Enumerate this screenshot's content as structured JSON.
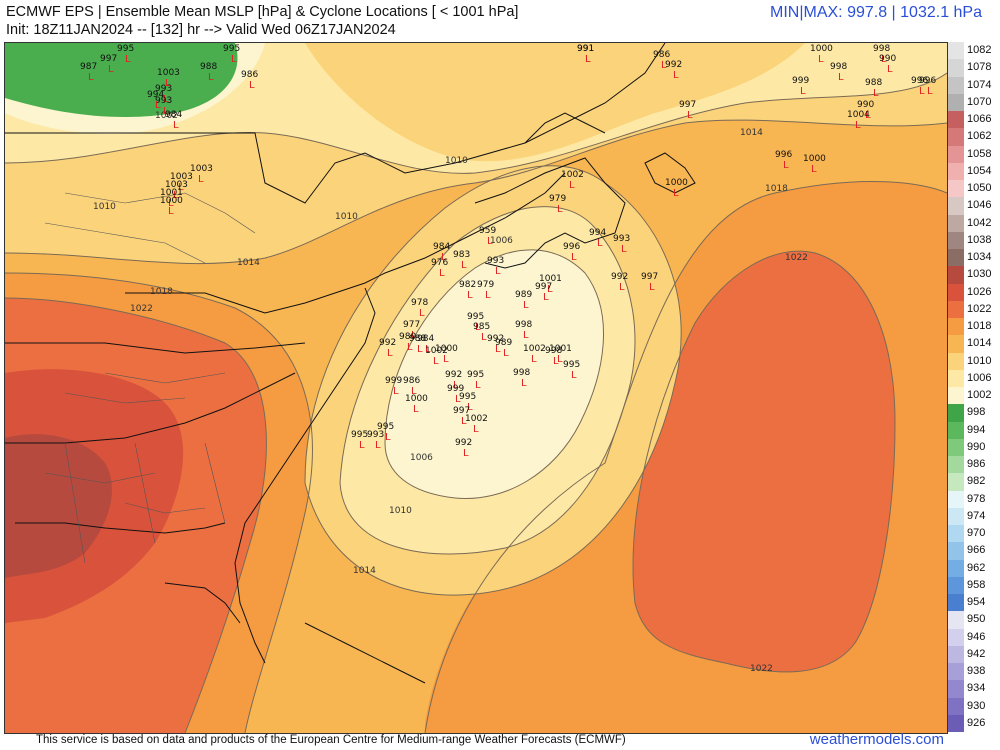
{
  "header": {
    "title_line1": "ECMWF EPS | Ensemble Mean MSLP [hPa] & Cyclone Locations [ < 1001 hPa]",
    "title_line2": "Init: 18Z11JAN2024 -- [132] hr --> Valid Wed 06Z17JAN2024",
    "minmax": "MIN|MAX: 997.8 | 1032.1 hPa"
  },
  "footer": {
    "credit": "This service is based on data and products of the European Centre for Medium-range Weather Forecasts (ECMWF)",
    "brand": "weathermodels.com"
  },
  "colors": {
    "fill_1002_1006": "#fdf5cf",
    "fill_1006_1010": "#fde9a5",
    "fill_1010_1014": "#fbd37a",
    "fill_1014_1018": "#f8b652",
    "fill_1018_1022": "#f59b41",
    "fill_1022_1026": "#ec6f42",
    "fill_1026_1030": "#d9523b",
    "fill_1030_1034": "#b74a3f",
    "low_green": "#4aad4e",
    "cyclone_L": "#e02020",
    "accent_blue": "#2b4fd6"
  },
  "contour_labels": [
    "1002",
    "1006",
    "1010",
    "1014",
    "1018",
    "1022"
  ],
  "colorbar": [
    {
      "label": "1082",
      "color": "#e4e4e4"
    },
    {
      "label": "1078",
      "color": "#d6d6d6"
    },
    {
      "label": "1074",
      "color": "#c4c4c4"
    },
    {
      "label": "1070",
      "color": "#b0b0b0"
    },
    {
      "label": "1066",
      "color": "#c65f5f"
    },
    {
      "label": "1062",
      "color": "#d57878"
    },
    {
      "label": "1058",
      "color": "#e49494"
    },
    {
      "label": "1054",
      "color": "#f0b0b0"
    },
    {
      "label": "1050",
      "color": "#f6c7c7"
    },
    {
      "label": "1046",
      "color": "#d8c8c4"
    },
    {
      "label": "1042",
      "color": "#bda8a2"
    },
    {
      "label": "1038",
      "color": "#a08680"
    },
    {
      "label": "1034",
      "color": "#8a6e66"
    },
    {
      "label": "1030",
      "color": "#b74a3f"
    },
    {
      "label": "1026",
      "color": "#d9523b"
    },
    {
      "label": "1022",
      "color": "#ec6f42"
    },
    {
      "label": "1018",
      "color": "#f59b41"
    },
    {
      "label": "1014",
      "color": "#f8b652"
    },
    {
      "label": "1010",
      "color": "#fbd37a"
    },
    {
      "label": "1006",
      "color": "#fde9a5"
    },
    {
      "label": "1002",
      "color": "#fdf5cf"
    },
    {
      "label": "998",
      "color": "#3fa548"
    },
    {
      "label": "994",
      "color": "#5cb85c"
    },
    {
      "label": "990",
      "color": "#7fc97a"
    },
    {
      "label": "986",
      "color": "#a3d99c"
    },
    {
      "label": "982",
      "color": "#c6e8bf"
    },
    {
      "label": "978",
      "color": "#e6f5f8"
    },
    {
      "label": "974",
      "color": "#cce8f4"
    },
    {
      "label": "970",
      "color": "#b0d8f0"
    },
    {
      "label": "966",
      "color": "#92c4ea"
    },
    {
      "label": "962",
      "color": "#74ade3"
    },
    {
      "label": "958",
      "color": "#5d96da"
    },
    {
      "label": "954",
      "color": "#4a7fcf"
    },
    {
      "label": "950",
      "color": "#e6e6f2"
    },
    {
      "label": "946",
      "color": "#d2d0ec"
    },
    {
      "label": "942",
      "color": "#bcb8e2"
    },
    {
      "label": "938",
      "color": "#a79fd8"
    },
    {
      "label": "934",
      "color": "#9388cd"
    },
    {
      "label": "930",
      "color": "#7f72c2"
    },
    {
      "label": "926",
      "color": "#6b5cb6"
    }
  ],
  "cyclones": [
    {
      "value": "991"
    },
    {
      "value": "987"
    },
    {
      "value": "997"
    },
    {
      "value": "995"
    },
    {
      "value": "988"
    },
    {
      "value": "995"
    },
    {
      "value": "986"
    },
    {
      "value": "993"
    },
    {
      "value": "1003"
    },
    {
      "value": "993"
    },
    {
      "value": "994"
    },
    {
      "value": "984"
    },
    {
      "value": "1003"
    },
    {
      "value": "1003"
    },
    {
      "value": "1003"
    },
    {
      "value": "1001"
    },
    {
      "value": "1000"
    },
    {
      "value": "991"
    },
    {
      "value": "986"
    },
    {
      "value": "992"
    },
    {
      "value": "997"
    },
    {
      "value": "1000"
    },
    {
      "value": "998"
    },
    {
      "value": "998"
    },
    {
      "value": "990"
    },
    {
      "value": "999"
    },
    {
      "value": "988"
    },
    {
      "value": "996"
    },
    {
      "value": "996"
    },
    {
      "value": "990"
    },
    {
      "value": "1004"
    },
    {
      "value": "996"
    },
    {
      "value": "1000"
    },
    {
      "value": "1002"
    },
    {
      "value": "1000"
    },
    {
      "value": "979"
    },
    {
      "value": "959"
    },
    {
      "value": "984"
    },
    {
      "value": "983"
    },
    {
      "value": "976"
    },
    {
      "value": "993"
    },
    {
      "value": "996"
    },
    {
      "value": "994"
    },
    {
      "value": "993"
    },
    {
      "value": "982"
    },
    {
      "value": "979"
    },
    {
      "value": "1001"
    },
    {
      "value": "997"
    },
    {
      "value": "992"
    },
    {
      "value": "997"
    },
    {
      "value": "989"
    },
    {
      "value": "978"
    },
    {
      "value": "977"
    },
    {
      "value": "980"
    },
    {
      "value": "992"
    },
    {
      "value": "988"
    },
    {
      "value": "984"
    },
    {
      "value": "995"
    },
    {
      "value": "985"
    },
    {
      "value": "998"
    },
    {
      "value": "1002"
    },
    {
      "value": "998"
    },
    {
      "value": "992"
    },
    {
      "value": "989"
    },
    {
      "value": "1000"
    },
    {
      "value": "1002"
    },
    {
      "value": "1001"
    },
    {
      "value": "995"
    },
    {
      "value": "999"
    },
    {
      "value": "986"
    },
    {
      "value": "992"
    },
    {
      "value": "995"
    },
    {
      "value": "998"
    },
    {
      "value": "999"
    },
    {
      "value": "995"
    },
    {
      "value": "1000"
    },
    {
      "value": "997"
    },
    {
      "value": "1002"
    },
    {
      "value": "992"
    },
    {
      "value": "995"
    },
    {
      "value": "993"
    },
    {
      "value": "995"
    }
  ]
}
